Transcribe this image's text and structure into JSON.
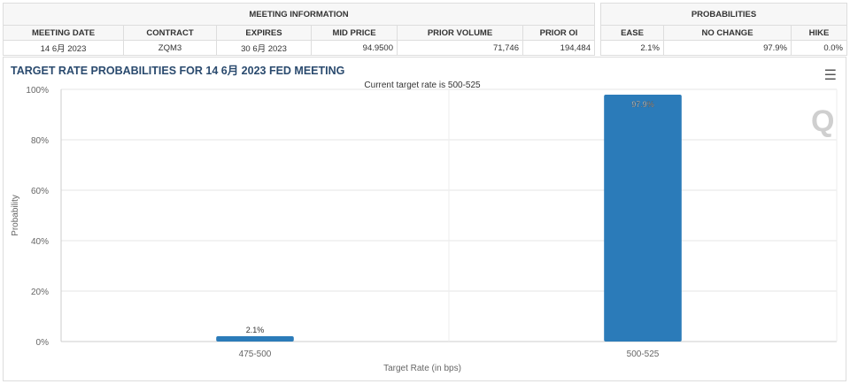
{
  "meeting_info": {
    "header": "MEETING INFORMATION",
    "columns": [
      "MEETING DATE",
      "CONTRACT",
      "EXPIRES",
      "MID PRICE",
      "PRIOR VOLUME",
      "PRIOR OI"
    ],
    "row": [
      "14 6月 2023",
      "ZQM3",
      "30 6月 2023",
      "94.9500",
      "71,746",
      "194,484"
    ]
  },
  "probabilities": {
    "header": "PROBABILITIES",
    "columns": [
      "EASE",
      "NO CHANGE",
      "HIKE"
    ],
    "row": [
      "2.1%",
      "97.9%",
      "0.0%"
    ]
  },
  "chart_data": {
    "type": "bar",
    "title": "TARGET RATE PROBABILITIES FOR 14 6月 2023 FED MEETING",
    "subtitle": "Current target rate is 500-525",
    "xlabel": "Target Rate (in bps)",
    "ylabel": "Probability",
    "categories": [
      "475-500",
      "500-525"
    ],
    "values": [
      2.1,
      97.9
    ],
    "data_labels": [
      "2.1%",
      "97.9%"
    ],
    "ylim": [
      0,
      100
    ],
    "yticks": [
      "0%",
      "20%",
      "40%",
      "60%",
      "80%",
      "100%"
    ],
    "grid": true,
    "bar_color": "#2b7bb9"
  },
  "menu_icon": "hamburger-icon"
}
